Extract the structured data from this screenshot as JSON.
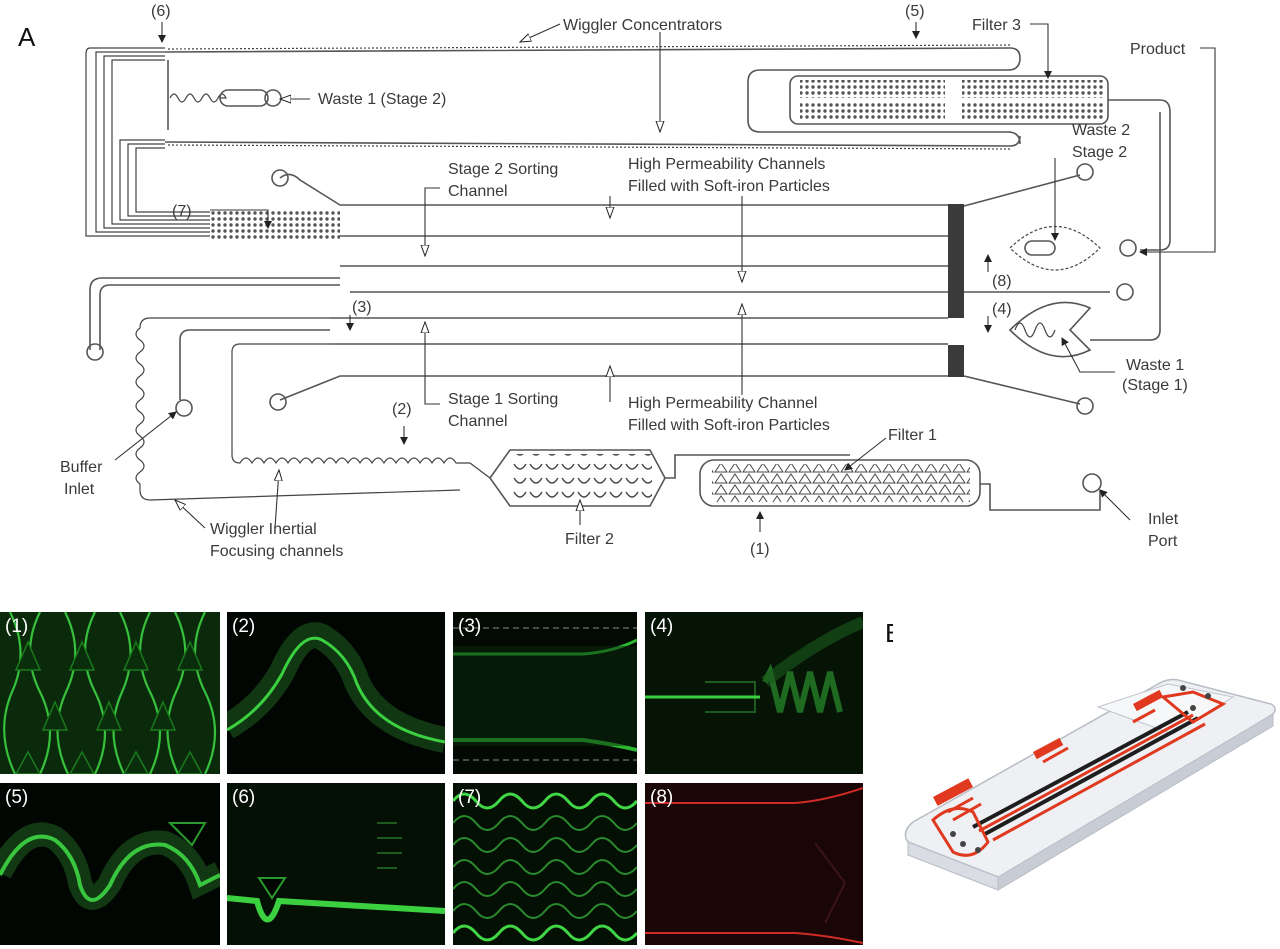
{
  "panel_a": {
    "letter": "A",
    "labels": {
      "p6": "(6)",
      "p5": "(5)",
      "p7": "(7)",
      "p8": "(8)",
      "p3": "(3)",
      "p4": "(4)",
      "p2": "(2)",
      "p1": "(1)",
      "wiggler_concentrators": "Wiggler Concentrators",
      "filter3": "Filter 3",
      "product": "Product",
      "waste1_stage2": "Waste 1 (Stage 2)",
      "waste2": "Waste 2",
      "stage2": "Stage 2",
      "stage2_sorting_1": "Stage 2 Sorting",
      "stage2_sorting_2": "Channel",
      "hpc_top_1": "High Permeability Channels",
      "hpc_top_2": "Filled with Soft-iron Particles",
      "stage1_sorting_1": "Stage 1 Sorting",
      "stage1_sorting_2": "Channel",
      "hpc_bot_1": "High Permeability Channel",
      "hpc_bot_2": "Filled with Soft-iron Particles",
      "waste1_stage1_1": "Waste 1",
      "waste1_stage1_2": "(Stage 1)",
      "filter1": "Filter 1",
      "filter2": "Filter 2",
      "buffer_1": "Buffer",
      "buffer_2": "Inlet",
      "wiggler_inertial_1": "Wiggler Inertial",
      "wiggler_inertial_2": "Focusing channels",
      "inlet_1": "Inlet",
      "inlet_2": "Port"
    }
  },
  "micrographs": [
    {
      "label": "(1)",
      "color": "#35c43a"
    },
    {
      "label": "(2)",
      "color": "#2fbd35"
    },
    {
      "label": "(3)",
      "color": "#2cb832"
    },
    {
      "label": "(4)",
      "color": "#2ab031"
    },
    {
      "label": "(5)",
      "color": "#31c238"
    },
    {
      "label": "(6)",
      "color": "#35cc3a"
    },
    {
      "label": "(7)",
      "color": "#2fbf35"
    },
    {
      "label": "(8)",
      "color": "#d02a26"
    }
  ],
  "panel_b": {
    "letter": "B"
  }
}
